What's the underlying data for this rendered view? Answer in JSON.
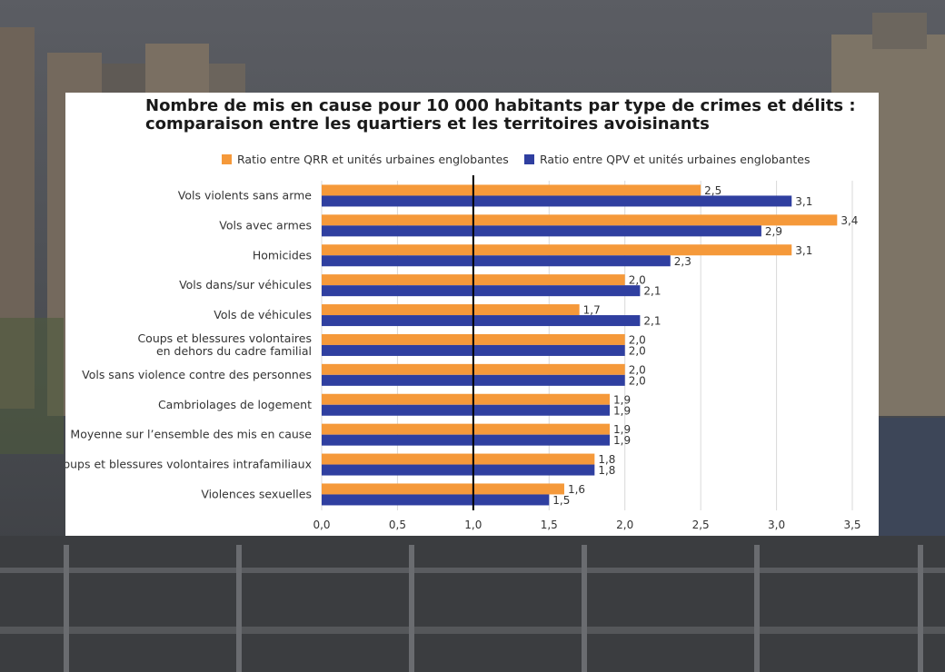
{
  "title_line1": "Nombre de mis en cause pour 10 000 habitants par type de crimes et délits :",
  "title_line2": "comparaison entre les quartiers et les territoires avoisinants",
  "colors": {
    "qrr": "#F5993A",
    "qpv": "#2F3FA0",
    "text": "#333333",
    "reference_line": "#000000",
    "grid": "#D9D9D9"
  },
  "chart_data": {
    "type": "bar",
    "orientation": "horizontal",
    "title": "Nombre de mis en cause pour 10 000 habitants par type de crimes et délits : comparaison entre les quartiers et les territoires avoisinants",
    "categories": [
      "Vols violents sans arme",
      "Vols avec armes",
      "Homicides",
      "Vols dans/sur véhicules",
      "Vols de véhicules",
      "Coups et blessures volontaires\nen dehors du cadre familial",
      "Vols sans violence contre des personnes",
      "Cambriolages de logement",
      "Moyenne sur l’ensemble des mis en cause",
      "Coups et blessures volontaires intrafamiliaux",
      "Violences sexuelles"
    ],
    "series": [
      {
        "name": "Ratio entre QRR et unités urbaines englobantes",
        "color": "#F5993A",
        "values": [
          2.5,
          3.4,
          3.1,
          2.0,
          1.7,
          2.0,
          2.0,
          1.9,
          1.9,
          1.8,
          1.6
        ],
        "labels": [
          "2,5",
          "3,4",
          "3,1",
          "2,0",
          "1,7",
          "2,0",
          "2,0",
          "1,9",
          "1,9",
          "1,8",
          "1,6"
        ]
      },
      {
        "name": "Ratio entre QPV et unités urbaines englobantes",
        "color": "#2F3FA0",
        "values": [
          3.1,
          2.9,
          2.3,
          2.1,
          2.1,
          2.0,
          2.0,
          1.9,
          1.9,
          1.8,
          1.5
        ],
        "labels": [
          "3,1",
          "2,9",
          "2,3",
          "2,1",
          "2,1",
          "2,0",
          "2,0",
          "1,9",
          "1,9",
          "1,8",
          "1,5"
        ]
      }
    ],
    "xlim": [
      0,
      3.5
    ],
    "xticks": [
      0,
      0.5,
      1.0,
      1.5,
      2.0,
      2.5,
      3.0,
      3.5
    ],
    "xtick_labels": [
      "0,0",
      "0,5",
      "1,0",
      "1,5",
      "2,0",
      "2,5",
      "3,0",
      "3,5"
    ],
    "reference_line": 1.0,
    "grid": true,
    "legend_position": "top"
  }
}
